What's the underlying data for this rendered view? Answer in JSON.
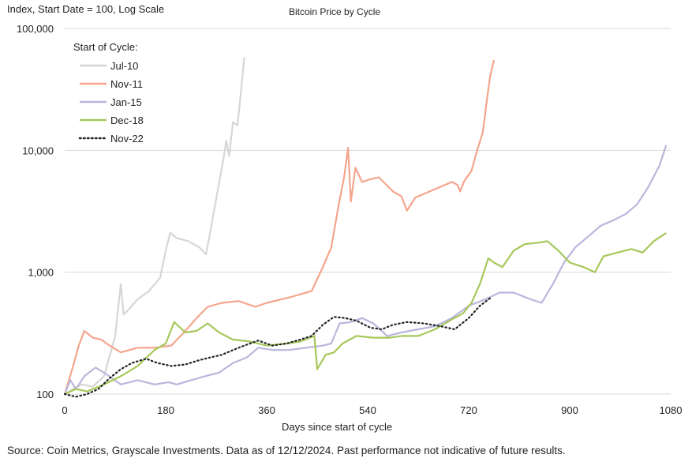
{
  "chart_data": {
    "type": "line",
    "title": "Bitcoin Price by Cycle",
    "ylabel": "Index, Start Date = 100, Log Scale",
    "xlabel": "Days since start of cycle",
    "source": "Source: Coin Metrics, Grayscale Investments. Data as of 12/12/2024. Past performance not indicative of future results.",
    "y_scale": "log",
    "ylim": [
      100,
      100000
    ],
    "xlim": [
      0,
      1080
    ],
    "y_ticks": [
      100,
      1000,
      10000,
      100000
    ],
    "y_tick_labels": [
      "100",
      "1,000",
      "10,000",
      "100,000"
    ],
    "x_ticks": [
      0,
      180,
      360,
      540,
      720,
      900,
      1080
    ],
    "x_tick_labels": [
      "0",
      "180",
      "360",
      "540",
      "720",
      "900",
      "1080"
    ],
    "grid": "horizontal",
    "legend": {
      "title": "Start of Cycle:",
      "placement": "top-left"
    },
    "series": [
      {
        "name": "Jul-10",
        "color": "#d6d6d6",
        "style": "solid",
        "points": [
          [
            0,
            100
          ],
          [
            15,
            110
          ],
          [
            30,
            120
          ],
          [
            50,
            115
          ],
          [
            70,
            140
          ],
          [
            90,
            300
          ],
          [
            100,
            800
          ],
          [
            105,
            450
          ],
          [
            115,
            500
          ],
          [
            130,
            600
          ],
          [
            150,
            700
          ],
          [
            170,
            900
          ],
          [
            180,
            1500
          ],
          [
            188,
            2100
          ],
          [
            200,
            1900
          ],
          [
            220,
            1800
          ],
          [
            240,
            1600
          ],
          [
            252,
            1400
          ],
          [
            262,
            2500
          ],
          [
            272,
            4500
          ],
          [
            282,
            8000
          ],
          [
            288,
            12000
          ],
          [
            293,
            9000
          ],
          [
            300,
            17000
          ],
          [
            308,
            16000
          ],
          [
            314,
            30000
          ],
          [
            320,
            58000
          ]
        ]
      },
      {
        "name": "Nov-11",
        "color": "#f4a58c",
        "style": "solid",
        "points": [
          [
            0,
            100
          ],
          [
            15,
            170
          ],
          [
            25,
            250
          ],
          [
            35,
            330
          ],
          [
            50,
            290
          ],
          [
            65,
            280
          ],
          [
            80,
            250
          ],
          [
            100,
            220
          ],
          [
            130,
            240
          ],
          [
            160,
            240
          ],
          [
            190,
            250
          ],
          [
            215,
            330
          ],
          [
            235,
            420
          ],
          [
            255,
            520
          ],
          [
            280,
            560
          ],
          [
            310,
            580
          ],
          [
            340,
            520
          ],
          [
            360,
            560
          ],
          [
            400,
            620
          ],
          [
            440,
            700
          ],
          [
            460,
            1100
          ],
          [
            475,
            1600
          ],
          [
            488,
            3500
          ],
          [
            498,
            6000
          ],
          [
            505,
            10500
          ],
          [
            510,
            3800
          ],
          [
            518,
            7200
          ],
          [
            530,
            5500
          ],
          [
            545,
            5800
          ],
          [
            560,
            6000
          ],
          [
            585,
            4600
          ],
          [
            600,
            4200
          ],
          [
            610,
            3200
          ],
          [
            625,
            4100
          ],
          [
            660,
            4800
          ],
          [
            690,
            5500
          ],
          [
            700,
            5200
          ],
          [
            705,
            4600
          ],
          [
            712,
            5600
          ],
          [
            725,
            6800
          ],
          [
            735,
            10000
          ],
          [
            745,
            14000
          ],
          [
            752,
            25000
          ],
          [
            758,
            40000
          ],
          [
            765,
            55000
          ]
        ]
      },
      {
        "name": "Jan-15",
        "color": "#b9b7dc",
        "style": "solid",
        "points": [
          [
            0,
            100
          ],
          [
            10,
            130
          ],
          [
            20,
            110
          ],
          [
            35,
            140
          ],
          [
            55,
            165
          ],
          [
            75,
            145
          ],
          [
            100,
            120
          ],
          [
            130,
            130
          ],
          [
            160,
            120
          ],
          [
            185,
            125
          ],
          [
            200,
            120
          ],
          [
            225,
            130
          ],
          [
            250,
            140
          ],
          [
            275,
            150
          ],
          [
            300,
            180
          ],
          [
            325,
            200
          ],
          [
            345,
            240
          ],
          [
            370,
            230
          ],
          [
            400,
            230
          ],
          [
            430,
            240
          ],
          [
            460,
            250
          ],
          [
            475,
            260
          ],
          [
            490,
            380
          ],
          [
            510,
            390
          ],
          [
            530,
            420
          ],
          [
            550,
            380
          ],
          [
            575,
            300
          ],
          [
            600,
            320
          ],
          [
            630,
            340
          ],
          [
            660,
            360
          ],
          [
            690,
            420
          ],
          [
            720,
            530
          ],
          [
            750,
            600
          ],
          [
            775,
            680
          ],
          [
            800,
            680
          ],
          [
            830,
            600
          ],
          [
            850,
            560
          ],
          [
            870,
            800
          ],
          [
            890,
            1200
          ],
          [
            910,
            1600
          ],
          [
            935,
            2000
          ],
          [
            955,
            2400
          ],
          [
            980,
            2700
          ],
          [
            1000,
            3000
          ],
          [
            1020,
            3600
          ],
          [
            1040,
            5000
          ],
          [
            1060,
            7500
          ],
          [
            1072,
            11000
          ]
        ]
      },
      {
        "name": "Dec-18",
        "color": "#a6c85a",
        "style": "solid",
        "points": [
          [
            0,
            100
          ],
          [
            20,
            110
          ],
          [
            40,
            105
          ],
          [
            70,
            120
          ],
          [
            100,
            140
          ],
          [
            130,
            170
          ],
          [
            160,
            230
          ],
          [
            180,
            260
          ],
          [
            195,
            390
          ],
          [
            215,
            320
          ],
          [
            235,
            330
          ],
          [
            255,
            380
          ],
          [
            275,
            320
          ],
          [
            300,
            280
          ],
          [
            330,
            270
          ],
          [
            360,
            250
          ],
          [
            395,
            260
          ],
          [
            420,
            270
          ],
          [
            445,
            300
          ],
          [
            450,
            160
          ],
          [
            465,
            210
          ],
          [
            480,
            220
          ],
          [
            495,
            260
          ],
          [
            520,
            300
          ],
          [
            550,
            290
          ],
          [
            580,
            290
          ],
          [
            600,
            300
          ],
          [
            630,
            300
          ],
          [
            660,
            340
          ],
          [
            690,
            410
          ],
          [
            710,
            460
          ],
          [
            725,
            560
          ],
          [
            740,
            800
          ],
          [
            755,
            1300
          ],
          [
            765,
            1200
          ],
          [
            780,
            1100
          ],
          [
            800,
            1500
          ],
          [
            820,
            1700
          ],
          [
            845,
            1750
          ],
          [
            860,
            1800
          ],
          [
            880,
            1500
          ],
          [
            900,
            1200
          ],
          [
            925,
            1100
          ],
          [
            945,
            1000
          ],
          [
            960,
            1350
          ],
          [
            985,
            1450
          ],
          [
            1010,
            1550
          ],
          [
            1030,
            1450
          ],
          [
            1050,
            1800
          ],
          [
            1072,
            2100
          ]
        ]
      },
      {
        "name": "Nov-22",
        "color": "#222222",
        "style": "dotted",
        "points": [
          [
            0,
            100
          ],
          [
            20,
            95
          ],
          [
            40,
            100
          ],
          [
            60,
            110
          ],
          [
            80,
            135
          ],
          [
            100,
            160
          ],
          [
            120,
            180
          ],
          [
            145,
            195
          ],
          [
            165,
            180
          ],
          [
            190,
            170
          ],
          [
            215,
            175
          ],
          [
            240,
            190
          ],
          [
            260,
            200
          ],
          [
            280,
            210
          ],
          [
            300,
            230
          ],
          [
            320,
            250
          ],
          [
            345,
            275
          ],
          [
            370,
            250
          ],
          [
            395,
            260
          ],
          [
            420,
            280
          ],
          [
            440,
            300
          ],
          [
            460,
            370
          ],
          [
            480,
            430
          ],
          [
            500,
            420
          ],
          [
            520,
            400
          ],
          [
            545,
            350
          ],
          [
            565,
            340
          ],
          [
            585,
            370
          ],
          [
            610,
            390
          ],
          [
            640,
            380
          ],
          [
            670,
            360
          ],
          [
            695,
            340
          ],
          [
            720,
            420
          ],
          [
            740,
            530
          ],
          [
            760,
            620
          ]
        ]
      }
    ]
  }
}
